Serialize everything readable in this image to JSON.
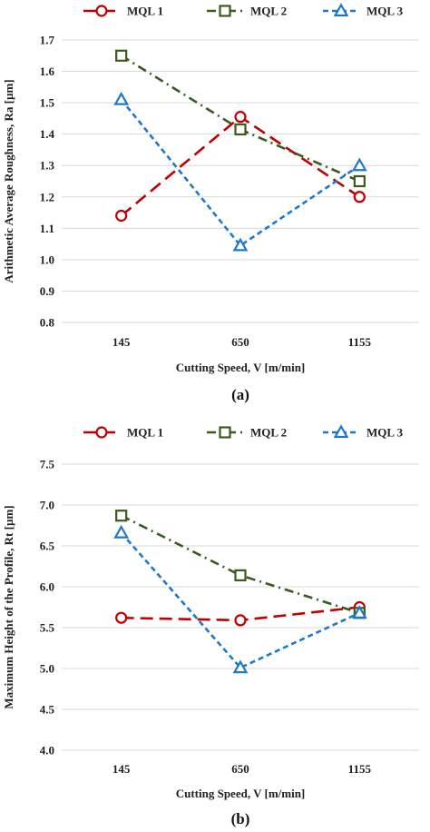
{
  "colors": {
    "MQL 1": "#c00000",
    "MQL 2": "#3a5a1e",
    "MQL 3": "#1f78c8",
    "grid": "#d9d9d9",
    "text": "#222222"
  },
  "chart_data": [
    {
      "type": "line",
      "caption": "(a)",
      "categories": [
        "145",
        "650",
        "1155"
      ],
      "xlabel": "Cutting Speed, V [m/min]",
      "ylabel": "Arithmetic Average Roughness, Ra [µm]",
      "ylim": [
        0.8,
        1.7
      ],
      "yticks": [
        "0.8",
        "0.9",
        "1.0",
        "1.1",
        "1.2",
        "1.3",
        "1.4",
        "1.5",
        "1.6",
        "1.7"
      ],
      "grid": "horizontal",
      "legend": "top",
      "series": [
        {
          "name": "MQL 1",
          "marker": "circle",
          "dash": "long-dash",
          "values": [
            1.14,
            1.455,
            1.2
          ]
        },
        {
          "name": "MQL 2",
          "marker": "square",
          "dash": "dash-dot",
          "values": [
            1.65,
            1.415,
            1.25
          ]
        },
        {
          "name": "MQL 3",
          "marker": "triangle",
          "dash": "short-dash",
          "values": [
            1.51,
            1.045,
            1.3
          ]
        }
      ]
    },
    {
      "type": "line",
      "caption": "(b)",
      "categories": [
        "145",
        "650",
        "1155"
      ],
      "xlabel": "Cutting Speed, V [m/min]",
      "ylabel": "Maximum Height of the Profile, Rt [µm]",
      "ylim": [
        4.0,
        7.5
      ],
      "yticks": [
        "4.0",
        "4.5",
        "5.0",
        "5.5",
        "6.0",
        "6.5",
        "7.0",
        "7.5"
      ],
      "grid": "horizontal",
      "legend": "top",
      "series": [
        {
          "name": "MQL 1",
          "marker": "circle",
          "dash": "long-dash",
          "values": [
            5.62,
            5.59,
            5.75
          ]
        },
        {
          "name": "MQL 2",
          "marker": "square",
          "dash": "dash-dot",
          "values": [
            6.87,
            6.14,
            5.68
          ]
        },
        {
          "name": "MQL 3",
          "marker": "triangle",
          "dash": "short-dash",
          "values": [
            6.66,
            5.01,
            5.68
          ]
        }
      ]
    }
  ]
}
